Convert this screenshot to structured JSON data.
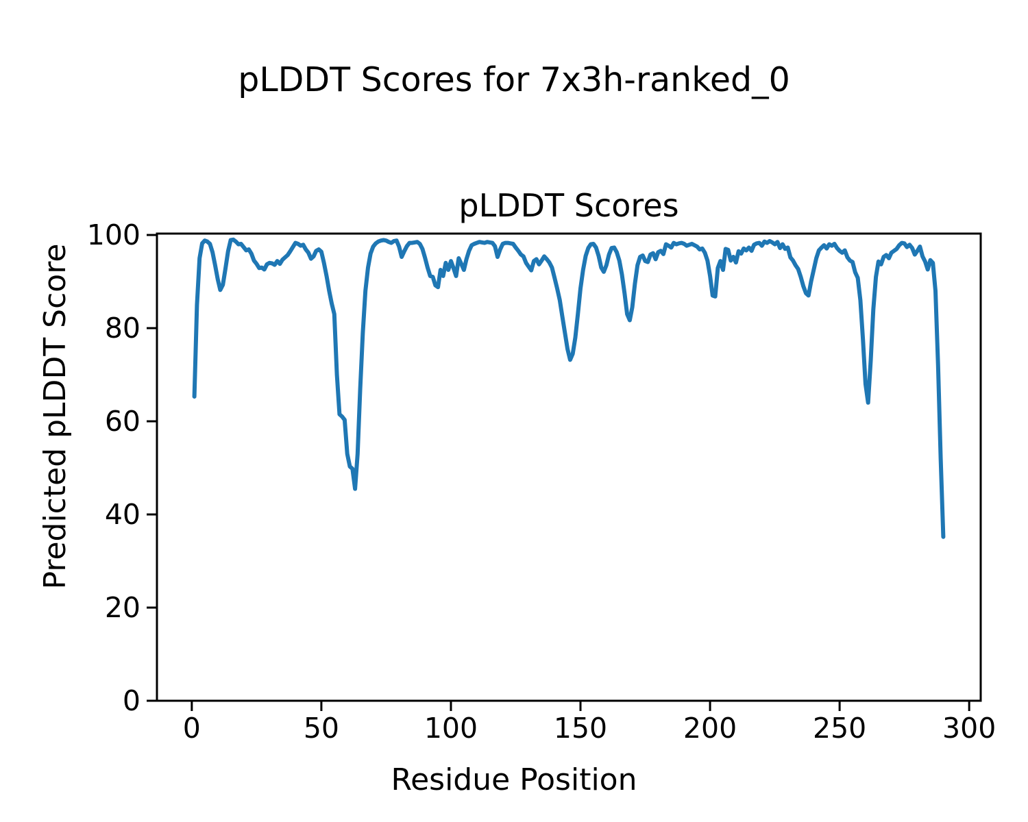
{
  "figure": {
    "suptitle": "pLDDT Scores for 7x3h-ranked_0",
    "axes_title": "pLDDT Scores",
    "xlabel": "Residue Position",
    "ylabel": "Predicted pLDDT Score"
  },
  "chart_data": {
    "type": "line",
    "title": "pLDDT Scores",
    "suptitle": "pLDDT Scores for 7x3h-ranked_0",
    "xlabel": "Residue Position",
    "ylabel": "Predicted pLDDT Score",
    "line_color": "#1f77b4",
    "background": "#ffffff",
    "grid": false,
    "legend": "none",
    "x_ticks": [
      0,
      50,
      100,
      150,
      200,
      250,
      300
    ],
    "y_ticks": [
      0,
      20,
      40,
      60,
      80,
      100
    ],
    "xlim": [
      -13.45,
      304.45
    ],
    "ylim": [
      0,
      100.3
    ],
    "x_start": 1,
    "x_description": "residue index 1..290, one pLDDT value per residue",
    "values": [
      65.3,
      85.0,
      95.0,
      98.2,
      98.8,
      98.6,
      98.1,
      96.3,
      93.5,
      90.5,
      88.2,
      89.3,
      92.8,
      96.5,
      98.9,
      99.0,
      98.6,
      98.0,
      98.1,
      97.4,
      96.7,
      96.9,
      96.0,
      94.5,
      93.8,
      92.9,
      93.0,
      92.6,
      93.7,
      94.0,
      93.9,
      93.6,
      94.4,
      93.8,
      94.7,
      95.2,
      95.7,
      96.5,
      97.4,
      98.3,
      98.1,
      97.7,
      97.9,
      96.9,
      96.2,
      94.9,
      95.4,
      96.6,
      96.9,
      96.4,
      94.0,
      91.2,
      88.0,
      85.3,
      83.0,
      70.0,
      61.5,
      61.0,
      60.3,
      53.0,
      50.3,
      49.8,
      45.5,
      53.0,
      67.0,
      79.0,
      88.0,
      93.0,
      96.0,
      97.5,
      98.2,
      98.6,
      98.8,
      98.9,
      98.8,
      98.5,
      98.3,
      98.7,
      98.8,
      97.5,
      95.3,
      96.5,
      97.6,
      98.3,
      98.3,
      98.4,
      98.5,
      98.1,
      97.0,
      95.1,
      93.0,
      91.2,
      91.0,
      89.2,
      88.8,
      92.5,
      91.2,
      94.0,
      92.5,
      94.4,
      92.9,
      91.2,
      95.0,
      93.8,
      92.5,
      94.8,
      96.6,
      97.8,
      98.1,
      98.3,
      98.5,
      98.4,
      98.3,
      98.5,
      98.4,
      98.3,
      97.6,
      95.3,
      96.9,
      98.1,
      98.3,
      98.3,
      98.2,
      98.1,
      97.3,
      96.6,
      95.8,
      95.4,
      94.0,
      93.2,
      92.4,
      94.4,
      94.8,
      93.7,
      94.5,
      95.4,
      94.8,
      94.1,
      93.0,
      90.8,
      88.5,
      86.0,
      82.5,
      79.0,
      75.5,
      73.2,
      74.5,
      78.0,
      83.0,
      88.5,
      92.5,
      95.5,
      97.2,
      98.0,
      98.1,
      97.3,
      95.5,
      93.0,
      92.1,
      93.5,
      95.8,
      97.2,
      97.3,
      96.3,
      94.5,
      91.5,
      87.5,
      83.0,
      81.7,
      84.5,
      89.5,
      93.5,
      95.3,
      95.6,
      94.4,
      94.2,
      95.8,
      96.1,
      94.8,
      96.3,
      96.6,
      95.9,
      98.0,
      97.7,
      97.3,
      98.3,
      98.0,
      98.2,
      98.3,
      98.1,
      97.7,
      97.9,
      98.1,
      97.8,
      97.5,
      96.9,
      97.1,
      96.2,
      94.5,
      91.2,
      87.0,
      86.8,
      92.9,
      94.4,
      92.5,
      97.0,
      96.8,
      94.5,
      95.3,
      94.1,
      96.5,
      96.0,
      97.1,
      96.7,
      97.3,
      96.6,
      97.9,
      98.2,
      98.3,
      97.7,
      98.6,
      98.3,
      98.7,
      98.4,
      98.0,
      98.5,
      97.2,
      98.0,
      97.0,
      97.3,
      95.2,
      94.5,
      93.5,
      92.7,
      91.0,
      89.0,
      87.5,
      87.0,
      90.0,
      92.5,
      95.0,
      96.7,
      97.3,
      97.8,
      97.1,
      98.0,
      97.7,
      98.1,
      97.2,
      96.6,
      96.2,
      96.7,
      95.2,
      94.5,
      94.2,
      92.0,
      90.8,
      86.0,
      77.5,
      68.0,
      64.0,
      73.0,
      84.0,
      91.0,
      94.3,
      93.7,
      95.3,
      95.7,
      95.0,
      96.2,
      96.6,
      97.0,
      97.8,
      98.3,
      98.2,
      97.4,
      97.9,
      97.2,
      95.8,
      96.6,
      97.5,
      95.4,
      94.3,
      92.6,
      94.6,
      94.0,
      88.0,
      72.0,
      52.0,
      35.2
    ]
  }
}
